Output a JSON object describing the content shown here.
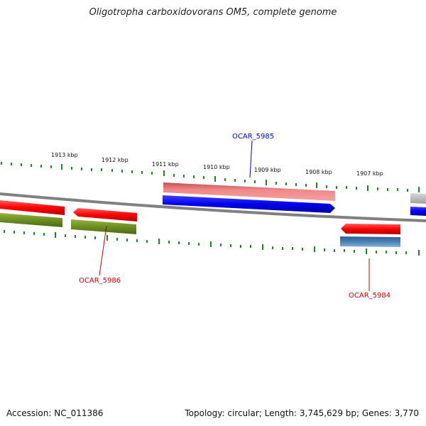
{
  "title": "Oligotropha carboxidovorans OM5, complete genome",
  "accession": "Accession: NC_011386",
  "summary": "Topology: circular; Length: 3,745,629 bp; Genes: 3,770",
  "ticks": [
    "1913 kbp",
    "1912 kbp",
    "1911 kbp",
    "1910 kbp",
    "1909 kbp",
    "1908 kbp",
    "1907 kbp"
  ],
  "genes": [
    {
      "name": "OCAR_5985",
      "color": "#0000cc"
    },
    {
      "name": "OCAR_5986",
      "color": "#cc0000"
    },
    {
      "name": "OCAR_5984",
      "color": "#cc0000"
    }
  ]
}
